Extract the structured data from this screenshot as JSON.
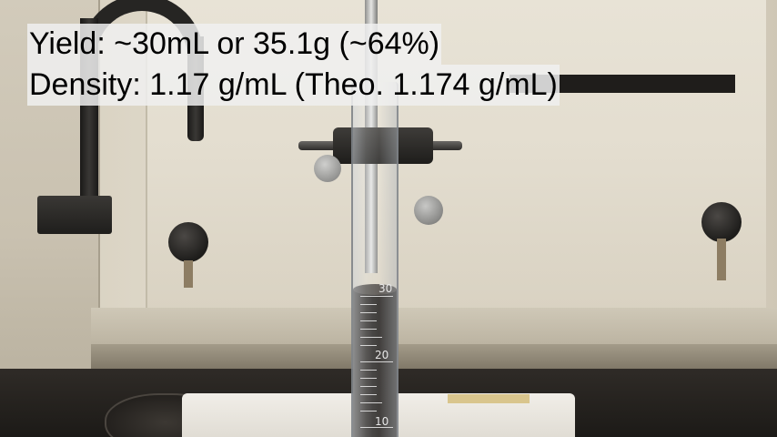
{
  "overlay": {
    "yield_line": "Yield: ~30mL or 35.1g (~64%)",
    "density_line": "Density: 1.17 g/mL (Theo. 1.174 g/mL)"
  },
  "cylinder": {
    "graduation_labels": [
      "30",
      "20",
      "10"
    ]
  }
}
